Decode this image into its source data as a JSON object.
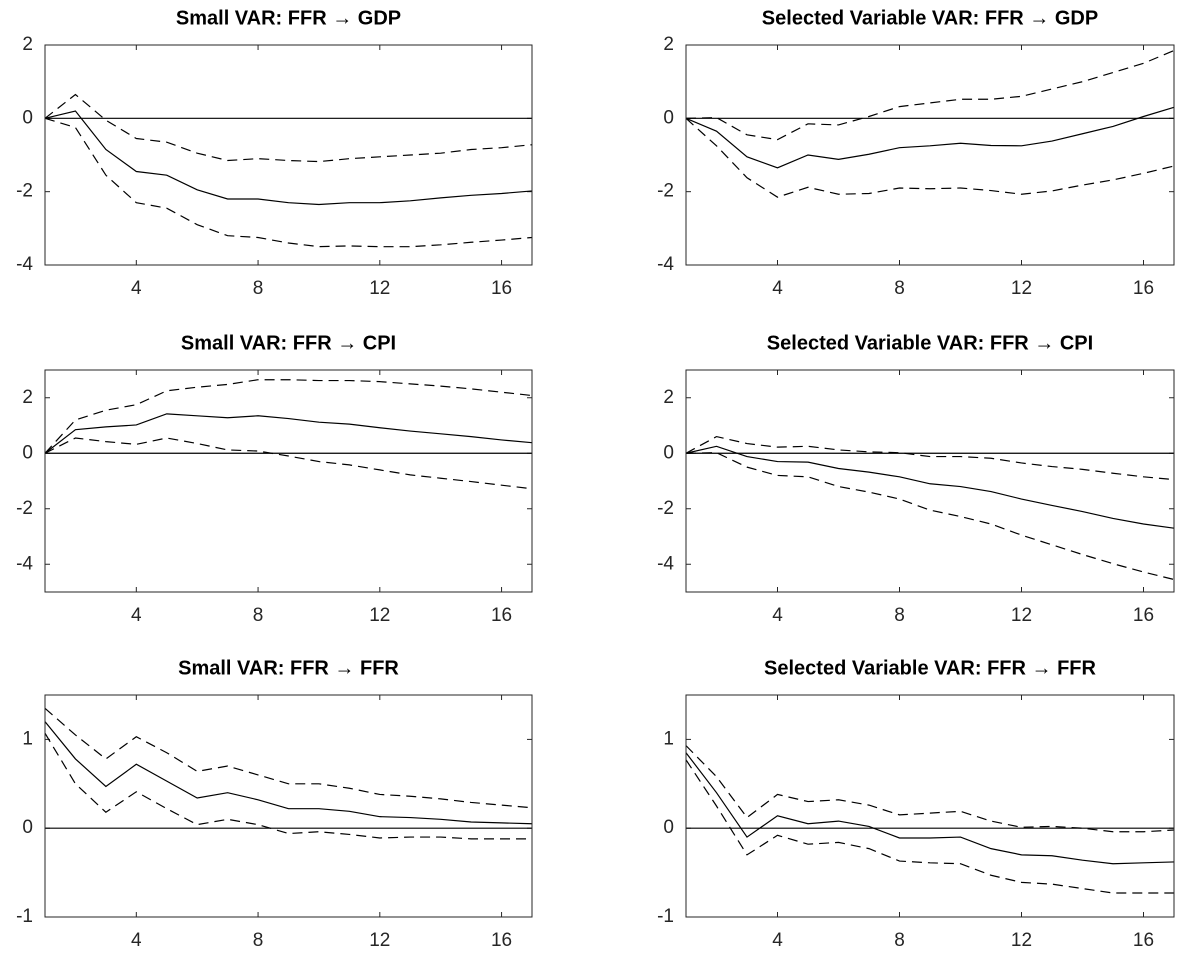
{
  "chart_data": [
    {
      "type": "line",
      "title": "Small VAR: FFR → GDP",
      "x": [
        1,
        2,
        3,
        4,
        5,
        6,
        7,
        8,
        9,
        10,
        11,
        12,
        13,
        14,
        15,
        16,
        17
      ],
      "xlim": [
        1,
        17
      ],
      "xticks": [
        4,
        8,
        12,
        16
      ],
      "ylim": [
        -4,
        2
      ],
      "yticks": [
        -4,
        -2,
        0,
        2
      ],
      "reference_line": 0,
      "series": [
        {
          "color": "#000000",
          "style": "solid",
          "values": [
            0,
            0.2,
            -0.85,
            -1.45,
            -1.55,
            -1.95,
            -2.2,
            -2.2,
            -2.3,
            -2.35,
            -2.3,
            -2.3,
            -2.25,
            -2.17,
            -2.1,
            -2.05,
            -1.98
          ]
        },
        {
          "color": "#000000",
          "style": "dashed",
          "values": [
            0,
            0.65,
            -0.05,
            -0.55,
            -0.65,
            -0.95,
            -1.15,
            -1.1,
            -1.15,
            -1.18,
            -1.1,
            -1.05,
            -1.0,
            -0.95,
            -0.85,
            -0.8,
            -0.72
          ]
        },
        {
          "color": "#000000",
          "style": "dashed",
          "values": [
            0,
            -0.25,
            -1.55,
            -2.3,
            -2.45,
            -2.9,
            -3.2,
            -3.25,
            -3.4,
            -3.5,
            -3.48,
            -3.5,
            -3.5,
            -3.45,
            -3.38,
            -3.32,
            -3.25
          ]
        }
      ]
    },
    {
      "type": "line",
      "title": "Selected Variable VAR: FFR → GDP",
      "x": [
        1,
        2,
        3,
        4,
        5,
        6,
        7,
        8,
        9,
        10,
        11,
        12,
        13,
        14,
        15,
        16,
        17
      ],
      "xlim": [
        1,
        17
      ],
      "xticks": [
        4,
        8,
        12,
        16
      ],
      "ylim": [
        -4,
        2
      ],
      "yticks": [
        -4,
        -2,
        0,
        2
      ],
      "reference_line": 0,
      "series": [
        {
          "color": "#000000",
          "style": "solid",
          "values": [
            0,
            -0.35,
            -1.05,
            -1.35,
            -1.0,
            -1.12,
            -0.98,
            -0.8,
            -0.75,
            -0.68,
            -0.74,
            -0.75,
            -0.62,
            -0.42,
            -0.22,
            0.05,
            0.3
          ]
        },
        {
          "color": "#000000",
          "style": "dashed",
          "values": [
            0,
            0.02,
            -0.45,
            -0.58,
            -0.15,
            -0.18,
            0.05,
            0.32,
            0.42,
            0.52,
            0.52,
            0.6,
            0.8,
            1.0,
            1.25,
            1.5,
            1.85
          ]
        },
        {
          "color": "#000000",
          "style": "dashed",
          "values": [
            0,
            -0.75,
            -1.62,
            -2.15,
            -1.88,
            -2.07,
            -2.05,
            -1.9,
            -1.92,
            -1.9,
            -1.97,
            -2.07,
            -1.98,
            -1.82,
            -1.68,
            -1.5,
            -1.3
          ]
        }
      ]
    },
    {
      "type": "line",
      "title": "Small VAR: FFR → CPI",
      "x": [
        1,
        2,
        3,
        4,
        5,
        6,
        7,
        8,
        9,
        10,
        11,
        12,
        13,
        14,
        15,
        16,
        17
      ],
      "xlim": [
        1,
        17
      ],
      "xticks": [
        4,
        8,
        12,
        16
      ],
      "ylim": [
        -5,
        3
      ],
      "yticks": [
        -4,
        -2,
        0,
        2
      ],
      "reference_line": 0,
      "series": [
        {
          "color": "#000000",
          "style": "solid",
          "values": [
            0,
            0.85,
            0.95,
            1.02,
            1.42,
            1.35,
            1.28,
            1.35,
            1.25,
            1.12,
            1.05,
            0.92,
            0.8,
            0.7,
            0.6,
            0.48,
            0.38
          ]
        },
        {
          "color": "#000000",
          "style": "dashed",
          "values": [
            0,
            1.2,
            1.55,
            1.75,
            2.25,
            2.38,
            2.48,
            2.65,
            2.65,
            2.62,
            2.62,
            2.58,
            2.5,
            2.42,
            2.32,
            2.2,
            2.08
          ]
        },
        {
          "color": "#000000",
          "style": "dashed",
          "values": [
            0,
            0.55,
            0.42,
            0.32,
            0.55,
            0.35,
            0.12,
            0.08,
            -0.1,
            -0.3,
            -0.42,
            -0.6,
            -0.78,
            -0.9,
            -1.02,
            -1.15,
            -1.28
          ]
        }
      ]
    },
    {
      "type": "line",
      "title": "Selected Variable VAR: FFR → CPI",
      "x": [
        1,
        2,
        3,
        4,
        5,
        6,
        7,
        8,
        9,
        10,
        11,
        12,
        13,
        14,
        15,
        16,
        17
      ],
      "xlim": [
        1,
        17
      ],
      "xticks": [
        4,
        8,
        12,
        16
      ],
      "ylim": [
        -5,
        3
      ],
      "yticks": [
        -4,
        -2,
        0,
        2
      ],
      "reference_line": 0,
      "series": [
        {
          "color": "#000000",
          "style": "solid",
          "values": [
            0,
            0.25,
            -0.12,
            -0.3,
            -0.32,
            -0.55,
            -0.68,
            -0.85,
            -1.1,
            -1.2,
            -1.38,
            -1.65,
            -1.88,
            -2.1,
            -2.35,
            -2.55,
            -2.7
          ]
        },
        {
          "color": "#000000",
          "style": "dashed",
          "values": [
            0,
            0.6,
            0.35,
            0.22,
            0.25,
            0.12,
            0.05,
            0.02,
            -0.12,
            -0.12,
            -0.18,
            -0.35,
            -0.48,
            -0.58,
            -0.72,
            -0.85,
            -0.95
          ]
        },
        {
          "color": "#000000",
          "style": "dashed",
          "values": [
            0,
            0.02,
            -0.5,
            -0.8,
            -0.85,
            -1.2,
            -1.4,
            -1.65,
            -2.05,
            -2.28,
            -2.55,
            -2.95,
            -3.3,
            -3.65,
            -3.98,
            -4.28,
            -4.55
          ]
        }
      ]
    },
    {
      "type": "line",
      "title": "Small VAR: FFR → FFR",
      "x": [
        1,
        2,
        3,
        4,
        5,
        6,
        7,
        8,
        9,
        10,
        11,
        12,
        13,
        14,
        15,
        16,
        17
      ],
      "xlim": [
        1,
        17
      ],
      "xticks": [
        4,
        8,
        12,
        16
      ],
      "ylim": [
        -1,
        1.5
      ],
      "yticks": [
        -1,
        0,
        1
      ],
      "reference_line": 0,
      "series": [
        {
          "color": "#000000",
          "style": "solid",
          "values": [
            1.2,
            0.78,
            0.47,
            0.72,
            0.53,
            0.34,
            0.4,
            0.32,
            0.22,
            0.22,
            0.19,
            0.13,
            0.12,
            0.1,
            0.07,
            0.06,
            0.05
          ]
        },
        {
          "color": "#000000",
          "style": "dashed",
          "values": [
            1.35,
            1.05,
            0.78,
            1.03,
            0.85,
            0.64,
            0.7,
            0.6,
            0.5,
            0.5,
            0.45,
            0.38,
            0.36,
            0.33,
            0.29,
            0.26,
            0.23
          ]
        },
        {
          "color": "#000000",
          "style": "dashed",
          "values": [
            1.07,
            0.5,
            0.18,
            0.41,
            0.22,
            0.04,
            0.1,
            0.04,
            -0.06,
            -0.04,
            -0.07,
            -0.11,
            -0.1,
            -0.1,
            -0.12,
            -0.12,
            -0.12
          ]
        }
      ]
    },
    {
      "type": "line",
      "title": "Selected Variable VAR: FFR → FFR",
      "x": [
        1,
        2,
        3,
        4,
        5,
        6,
        7,
        8,
        9,
        10,
        11,
        12,
        13,
        14,
        15,
        16,
        17
      ],
      "xlim": [
        1,
        17
      ],
      "xticks": [
        4,
        8,
        12,
        16
      ],
      "ylim": [
        -1,
        1.5
      ],
      "yticks": [
        -1,
        0,
        1
      ],
      "reference_line": 0,
      "series": [
        {
          "color": "#000000",
          "style": "solid",
          "values": [
            0.85,
            0.4,
            -0.1,
            0.14,
            0.05,
            0.08,
            0.02,
            -0.11,
            -0.11,
            -0.1,
            -0.23,
            -0.3,
            -0.31,
            -0.36,
            -0.4,
            -0.39,
            -0.38
          ]
        },
        {
          "color": "#000000",
          "style": "dashed",
          "values": [
            0.93,
            0.58,
            0.12,
            0.38,
            0.3,
            0.32,
            0.26,
            0.15,
            0.17,
            0.19,
            0.08,
            0.01,
            0.02,
            0.0,
            -0.04,
            -0.04,
            -0.02
          ]
        },
        {
          "color": "#000000",
          "style": "dashed",
          "values": [
            0.77,
            0.25,
            -0.3,
            -0.08,
            -0.18,
            -0.16,
            -0.23,
            -0.37,
            -0.39,
            -0.4,
            -0.53,
            -0.61,
            -0.63,
            -0.68,
            -0.73,
            -0.73,
            -0.73
          ]
        }
      ]
    }
  ]
}
